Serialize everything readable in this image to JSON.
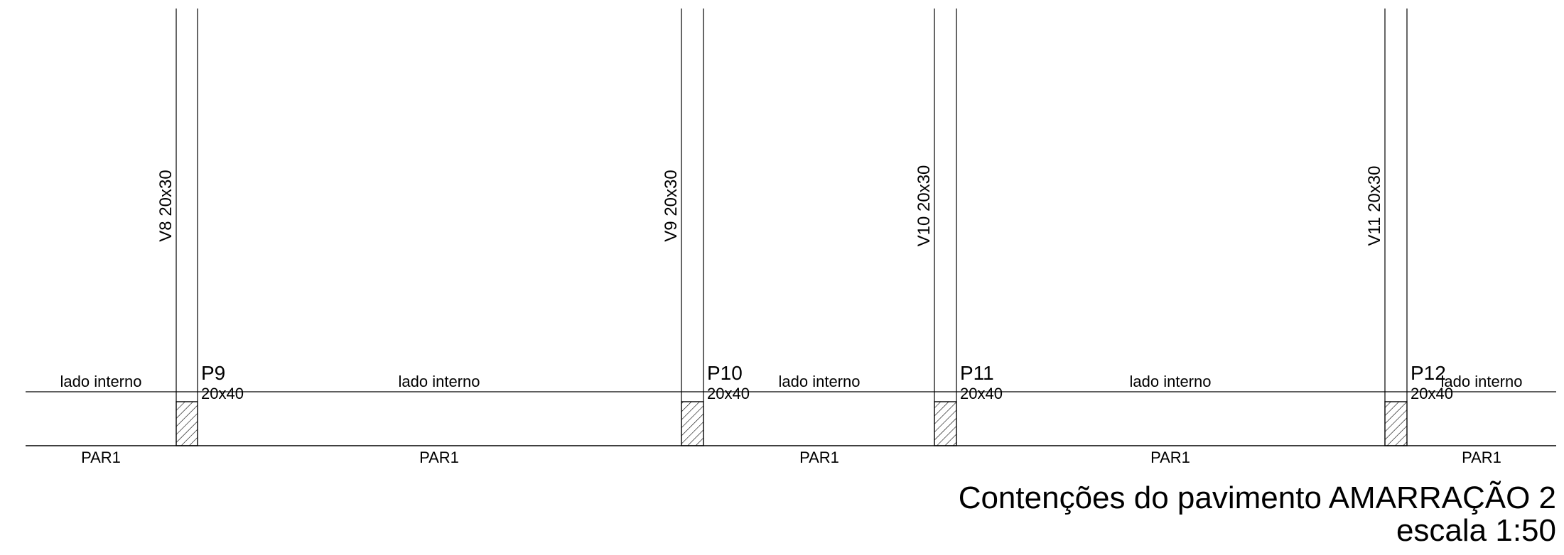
{
  "drawing": {
    "title": "Contenções do pavimento AMARRAÇÃO 2",
    "scale": "escala 1:50",
    "colors": {
      "line": "#000000",
      "background": "#ffffff"
    }
  },
  "beams": [
    {
      "label": "V8 20x30"
    },
    {
      "label": "V9 20x30"
    },
    {
      "label": "V10 20x30"
    },
    {
      "label": "V11 20x30"
    }
  ],
  "pillars": [
    {
      "name": "P9",
      "size": "20x40"
    },
    {
      "name": "P10",
      "size": "20x40"
    },
    {
      "name": "P11",
      "size": "20x40"
    },
    {
      "name": "P12",
      "size": "20x40"
    }
  ],
  "wall_segments": [
    {
      "side_label": "lado interno",
      "wall_label": "PAR1"
    },
    {
      "side_label": "lado interno",
      "wall_label": "PAR1"
    },
    {
      "side_label": "lado interno",
      "wall_label": "PAR1"
    },
    {
      "side_label": "lado interno",
      "wall_label": "PAR1"
    },
    {
      "side_label": "lado interno",
      "wall_label": "PAR1"
    }
  ]
}
